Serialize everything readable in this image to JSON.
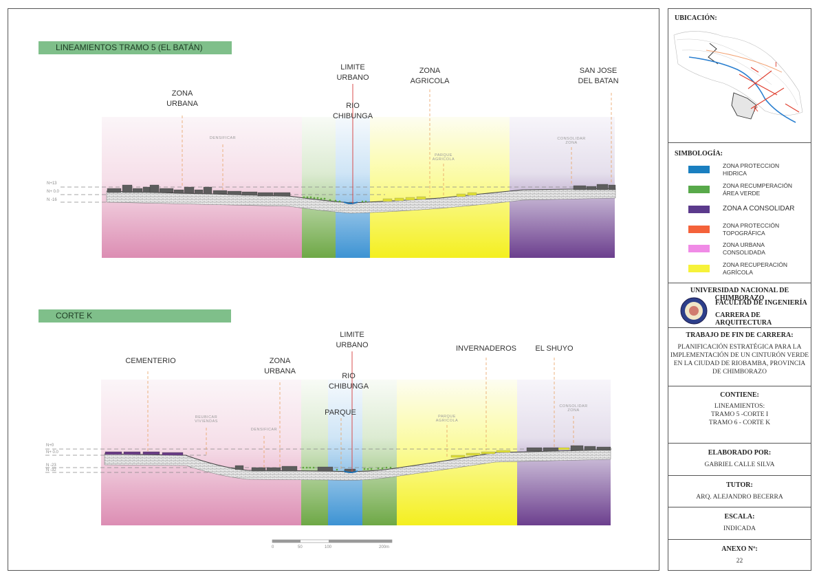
{
  "section1": {
    "title": "LINEAMIENTOS TRAMO 5 (EL BATÁN)",
    "labels": {
      "zona_urbana": "ZONA\nURBANA",
      "limite_urbano": "LIMITE\nURBANO",
      "rio": "RIO\nCHIBUNGA",
      "zona_agricola": "ZONA\nAGRICOLA",
      "san_jose": "SAN JOSE\nDEL BATAN"
    },
    "small": {
      "densificar": "DENSIFICAR",
      "parque": "PARQUE\nAGRICOLA",
      "consolidar": "CONSOLIDAR\nZONA"
    },
    "levels": {
      "top": "N+13",
      "mid": "N+ 0.0",
      "low": "N -16"
    }
  },
  "section2": {
    "title": "CORTE K",
    "labels": {
      "cementerio": "CEMENTERIO",
      "zona_urbana": "ZONA\nURBANA",
      "limite_urbano": "LIMITE\nURBANO",
      "rio": "RIO\nCHIBUNGA",
      "parque": "PARQUE",
      "invernaderos": "INVERNADEROS",
      "el_shuyo": "EL SHUYO"
    },
    "small": {
      "reubicar": "REUBICAR\nVIVIENDAS",
      "densificar": "DENSIFICAR",
      "parque_agricola": "PARQUE\nAGRICOLA",
      "consolidar": "CONSOLIDAR\nZONA"
    },
    "levels": {
      "top": "N+0",
      "mid": "N+ 0.0",
      "low1": "N -23",
      "low2": "N -32"
    }
  },
  "scale": {
    "ticks": [
      "0",
      "50",
      "100",
      "200m"
    ]
  },
  "side": {
    "ubicacion": "UBICACIÓN:",
    "map_labels": {
      "i": "I",
      "k": "K"
    },
    "simbologia": "SIMBOLOGÍA:",
    "legend": [
      {
        "label": "ZONA PROTECCION\nHIDRICA",
        "color": "#1a7fc0"
      },
      {
        "label": "ZONA RECUMPERACIÓN\nÁREA VERDE",
        "color": "#58a94a"
      },
      {
        "label": "ZONA A CONSOLIDAR",
        "color": "#5b3a8c"
      },
      {
        "label": "ZONA PROTECCIÓN\nTOPOGRÁFICA",
        "color": "#f4623a"
      },
      {
        "label": "ZONA URBANA\nCONSOLIDADA",
        "color": "#f08be6"
      },
      {
        "label": "ZONA RECUPERACIÓN\nAGRÍCOLA",
        "color": "#f6f23a"
      }
    ],
    "university": "UNIVERSIDAD NACIONAL DE CHIMBORAZO",
    "faculty": "FACULTAD DE INGENIERÍA",
    "career": "CARRERA DE ARQUITECTURA",
    "trabajo_head": "TRABAJO DE FIN DE CARRERA:",
    "trabajo_body": "PLANIFICACIÓN ESTRATÉGICA PARA LA IMPLEMENTACIÓN DE UN CINTURÓN VERDE EN LA CIUDAD DE RIOBAMBA, PROVINCIA DE CHIMBORAZO",
    "contiene_head": "CONTIENE:",
    "contiene_body": "LINEAMIENTOS:\nTRAMO 5 -CORTE I\nTRAMO 6 - CORTE K",
    "elaborado_head": "ELABORADO POR:",
    "elaborado_body": "GABRIEL CALLE SILVA",
    "tutor_head": "TUTOR:",
    "tutor_body": "ARQ. ALEJANDRO BECERRA",
    "escala_head": "ESCALA:",
    "escala_body": "INDICADA",
    "anexo_head": "ANEXO Nº:",
    "anexo_body": "22"
  }
}
